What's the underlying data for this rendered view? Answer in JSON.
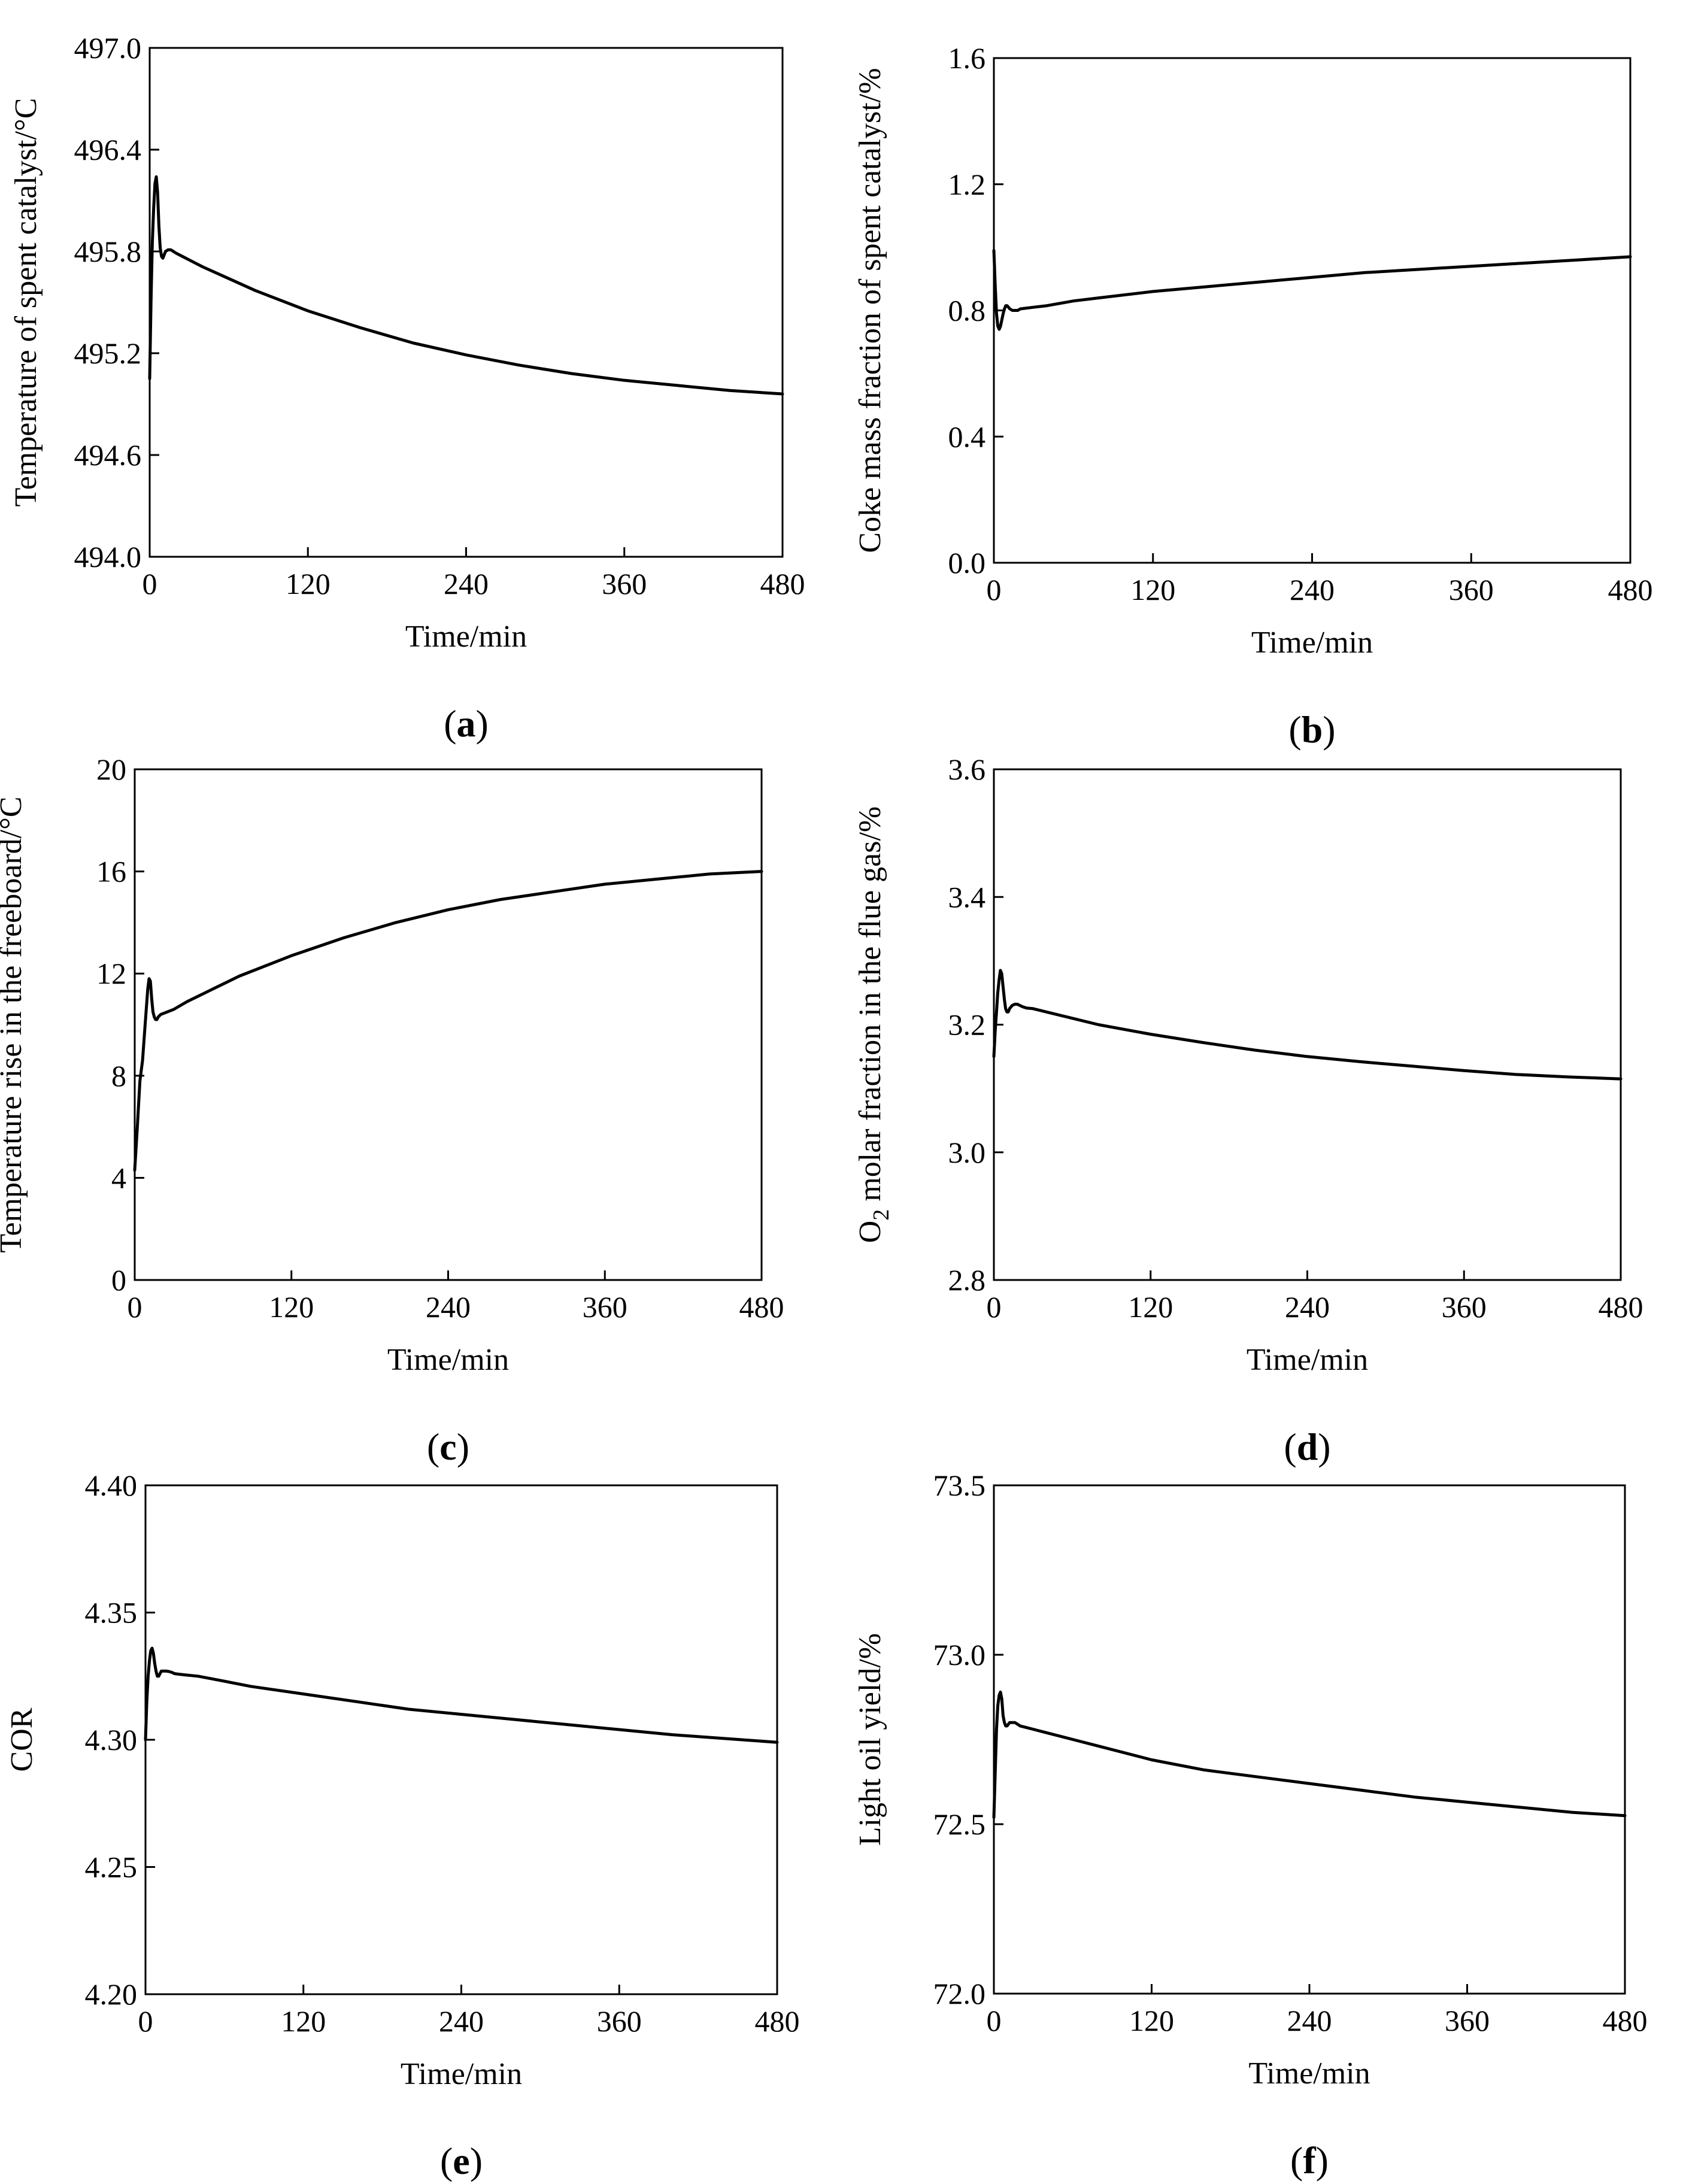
{
  "figure": {
    "time_unit_label": "Time/min",
    "line_color": "#000000",
    "background_color": "#ffffff"
  },
  "chart_data": [
    {
      "id": "a",
      "panel_label": "a",
      "type": "line",
      "title": "",
      "xlabel": "Time/min",
      "ylabel": "Temperature of spent catalyst/°C",
      "xlim": [
        0,
        480
      ],
      "ylim": [
        494.0,
        497.0
      ],
      "xticks": [
        0,
        120,
        240,
        360,
        480
      ],
      "yticks": [
        494.0,
        494.6,
        495.2,
        495.8,
        496.4,
        497.0
      ],
      "xtick_labels": [
        "0",
        "120",
        "240",
        "360",
        "480"
      ],
      "ytick_labels": [
        "494.0",
        "494.6",
        "495.2",
        "495.8",
        "496.4",
        "497.0"
      ],
      "series": [
        {
          "name": "Temperature of spent catalyst",
          "x": [
            0,
            1,
            2,
            3,
            4,
            5,
            6,
            7,
            8,
            9,
            10,
            11,
            12,
            14,
            16,
            18,
            20,
            25,
            30,
            40,
            60,
            80,
            120,
            160,
            200,
            240,
            280,
            320,
            360,
            400,
            440,
            480
          ],
          "y": [
            495.05,
            495.5,
            495.85,
            496.05,
            496.2,
            496.24,
            496.15,
            495.95,
            495.82,
            495.77,
            495.76,
            495.78,
            495.8,
            495.81,
            495.81,
            495.8,
            495.79,
            495.77,
            495.75,
            495.71,
            495.64,
            495.57,
            495.45,
            495.35,
            495.26,
            495.19,
            495.13,
            495.08,
            495.04,
            495.01,
            494.98,
            494.96
          ]
        }
      ]
    },
    {
      "id": "b",
      "panel_label": "b",
      "type": "line",
      "title": "",
      "xlabel": "Time/min",
      "ylabel": "Coke mass fraction of spent catalyst/%",
      "xlim": [
        0,
        480
      ],
      "ylim": [
        0.0,
        1.6
      ],
      "xticks": [
        0,
        120,
        240,
        360,
        480
      ],
      "yticks": [
        0.0,
        0.4,
        0.8,
        1.2,
        1.6
      ],
      "xtick_labels": [
        "0",
        "120",
        "240",
        "360",
        "480"
      ],
      "ytick_labels": [
        "0.0",
        "0.4",
        "0.8",
        "1.2",
        "1.6"
      ],
      "series": [
        {
          "name": "Coke mass fraction of spent catalyst",
          "x": [
            0,
            1,
            2,
            3,
            4,
            5,
            6,
            7,
            8,
            9,
            10,
            11,
            12,
            14,
            16,
            18,
            20,
            30,
            40,
            60,
            80,
            120,
            160,
            200,
            240,
            280,
            320,
            360,
            400,
            440,
            480
          ],
          "y": [
            0.99,
            0.88,
            0.79,
            0.75,
            0.74,
            0.75,
            0.77,
            0.79,
            0.805,
            0.815,
            0.815,
            0.81,
            0.805,
            0.8,
            0.8,
            0.8,
            0.805,
            0.81,
            0.815,
            0.83,
            0.84,
            0.86,
            0.875,
            0.89,
            0.905,
            0.92,
            0.93,
            0.94,
            0.95,
            0.96,
            0.97
          ]
        }
      ]
    },
    {
      "id": "c",
      "panel_label": "c",
      "type": "line",
      "title": "",
      "xlabel": "Time/min",
      "ylabel": "Temperature rise in the freeboard/°C",
      "xlim": [
        0,
        480
      ],
      "ylim": [
        0,
        20
      ],
      "xticks": [
        0,
        120,
        240,
        360,
        480
      ],
      "yticks": [
        0,
        4,
        8,
        12,
        16,
        20
      ],
      "xtick_labels": [
        "0",
        "120",
        "240",
        "360",
        "480"
      ],
      "ytick_labels": [
        "0",
        "4",
        "8",
        "12",
        "16",
        "20"
      ],
      "series": [
        {
          "name": "Temperature rise in the freeboard",
          "x": [
            0,
            2,
            4,
            6,
            8,
            10,
            11,
            12,
            13,
            14,
            15,
            16,
            17,
            18,
            20,
            25,
            30,
            40,
            60,
            80,
            120,
            160,
            200,
            240,
            280,
            320,
            360,
            400,
            440,
            480
          ],
          "y": [
            4.3,
            6.0,
            7.8,
            8.6,
            10.0,
            11.4,
            11.8,
            11.7,
            11.0,
            10.5,
            10.3,
            10.2,
            10.2,
            10.3,
            10.4,
            10.5,
            10.6,
            10.9,
            11.4,
            11.9,
            12.7,
            13.4,
            14.0,
            14.5,
            14.9,
            15.2,
            15.5,
            15.7,
            15.9,
            16.0
          ]
        }
      ]
    },
    {
      "id": "d",
      "panel_label": "d",
      "type": "line",
      "title": "",
      "xlabel": "Time/min",
      "ylabel": "O₂ molar fraction in the flue gas/%",
      "ylabel_main": "O",
      "ylabel_sub": "2",
      "ylabel_rest": " molar fraction in the flue gas/%",
      "xlim": [
        0,
        480
      ],
      "ylim": [
        2.8,
        3.6
      ],
      "xticks": [
        0,
        120,
        240,
        360,
        480
      ],
      "yticks": [
        2.8,
        3.0,
        3.2,
        3.4,
        3.6
      ],
      "xtick_labels": [
        "0",
        "120",
        "240",
        "360",
        "480"
      ],
      "ytick_labels": [
        "2.8",
        "3.0",
        "3.2",
        "3.4",
        "3.6"
      ],
      "series": [
        {
          "name": "O2 molar fraction in the flue gas",
          "x": [
            0,
            1,
            2,
            3,
            4,
            5,
            6,
            7,
            8,
            9,
            10,
            11,
            12,
            14,
            16,
            18,
            20,
            22,
            25,
            30,
            40,
            60,
            80,
            120,
            160,
            200,
            240,
            280,
            320,
            360,
            400,
            440,
            480
          ],
          "y": [
            3.15,
            3.19,
            3.22,
            3.25,
            3.27,
            3.285,
            3.28,
            3.26,
            3.24,
            3.225,
            3.22,
            3.22,
            3.225,
            3.23,
            3.232,
            3.232,
            3.23,
            3.228,
            3.226,
            3.225,
            3.22,
            3.21,
            3.2,
            3.185,
            3.172,
            3.16,
            3.15,
            3.142,
            3.135,
            3.128,
            3.122,
            3.118,
            3.115
          ]
        }
      ]
    },
    {
      "id": "e",
      "panel_label": "e",
      "type": "line",
      "title": "",
      "xlabel": "Time/min",
      "ylabel": "COR",
      "xlim": [
        0,
        480
      ],
      "ylim": [
        4.2,
        4.4
      ],
      "xticks": [
        0,
        120,
        240,
        360,
        480
      ],
      "yticks": [
        4.2,
        4.25,
        4.3,
        4.35,
        4.4
      ],
      "xtick_labels": [
        "0",
        "120",
        "240",
        "360",
        "480"
      ],
      "ytick_labels": [
        "4.20",
        "4.25",
        "4.30",
        "4.35",
        "4.40"
      ],
      "series": [
        {
          "name": "COR",
          "x": [
            0,
            1,
            2,
            3,
            4,
            5,
            6,
            7,
            8,
            9,
            10,
            11,
            12,
            14,
            16,
            18,
            20,
            22,
            25,
            30,
            40,
            60,
            80,
            120,
            160,
            200,
            240,
            280,
            320,
            360,
            400,
            440,
            480
          ],
          "y": [
            4.3,
            4.315,
            4.325,
            4.331,
            4.335,
            4.336,
            4.334,
            4.33,
            4.327,
            4.325,
            4.325,
            4.326,
            4.327,
            4.327,
            4.327,
            4.3268,
            4.3265,
            4.326,
            4.3258,
            4.3255,
            4.325,
            4.323,
            4.321,
            4.318,
            4.315,
            4.312,
            4.31,
            4.308,
            4.306,
            4.304,
            4.302,
            4.3005,
            4.299
          ]
        }
      ]
    },
    {
      "id": "f",
      "panel_label": "f",
      "type": "line",
      "title": "",
      "xlabel": "Time/min",
      "ylabel": "Light oil yield/%",
      "xlim": [
        0,
        480
      ],
      "ylim": [
        72.0,
        73.5
      ],
      "xticks": [
        0,
        120,
        240,
        360,
        480
      ],
      "yticks": [
        72.0,
        72.5,
        73.0,
        73.5
      ],
      "xtick_labels": [
        "0",
        "120",
        "240",
        "360",
        "480"
      ],
      "ytick_labels": [
        "72.0",
        "72.5",
        "73.0",
        "73.5"
      ],
      "series": [
        {
          "name": "Light oil yield",
          "x": [
            0,
            1,
            2,
            3,
            4,
            5,
            6,
            7,
            8,
            9,
            10,
            11,
            12,
            14,
            16,
            18,
            20,
            25,
            30,
            40,
            60,
            80,
            120,
            160,
            200,
            240,
            280,
            320,
            360,
            400,
            440,
            480
          ],
          "y": [
            72.52,
            72.65,
            72.78,
            72.85,
            72.88,
            72.89,
            72.87,
            72.82,
            72.8,
            72.79,
            72.79,
            72.795,
            72.8,
            72.8,
            72.8,
            72.795,
            72.79,
            72.785,
            72.78,
            72.77,
            72.75,
            72.73,
            72.69,
            72.66,
            72.64,
            72.62,
            72.6,
            72.58,
            72.565,
            72.55,
            72.535,
            72.525
          ]
        }
      ]
    }
  ]
}
